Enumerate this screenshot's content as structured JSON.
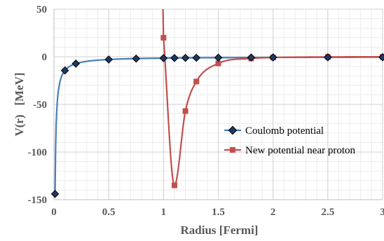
{
  "chart_data": {
    "type": "scatter",
    "title": "",
    "xlabel": "Radius [Fermi]",
    "ylabel": "V(r)   [MeV]",
    "xlim": [
      0,
      3
    ],
    "ylim": [
      -150,
      50
    ],
    "grid": true,
    "legend_position": "center-right",
    "x_ticks": [
      "0",
      "0.5",
      "1",
      "1.5",
      "2",
      "2.5",
      "3"
    ],
    "y_ticks": [
      "50",
      "0",
      "-50",
      "-100",
      "-150"
    ],
    "series": [
      {
        "name": "Coulomb potential",
        "color": "#4a7ebb",
        "marker": "diamond",
        "marker_fill": "#1f3864",
        "x": [
          0.01,
          0.1,
          0.2,
          0.5,
          0.75,
          1.0,
          1.1,
          1.2,
          1.3,
          1.5,
          1.8,
          2.0,
          2.5,
          3.0
        ],
        "y": [
          -144,
          -14.4,
          -7.2,
          -2.88,
          -1.92,
          -1.44,
          -1.31,
          -1.2,
          -1.11,
          -0.96,
          -0.8,
          -0.72,
          -0.58,
          -0.48
        ]
      },
      {
        "name": "New potential near proton",
        "color": "#c0504d",
        "marker": "square",
        "marker_fill": "#c0504d",
        "x": [
          1.0,
          1.1,
          1.2,
          1.3,
          1.5,
          1.8,
          2.0,
          2.5,
          3.0
        ],
        "y": [
          20,
          -135,
          -57,
          -26,
          -7,
          -1.8,
          -0.8,
          -0.2,
          -0.05
        ]
      }
    ]
  }
}
